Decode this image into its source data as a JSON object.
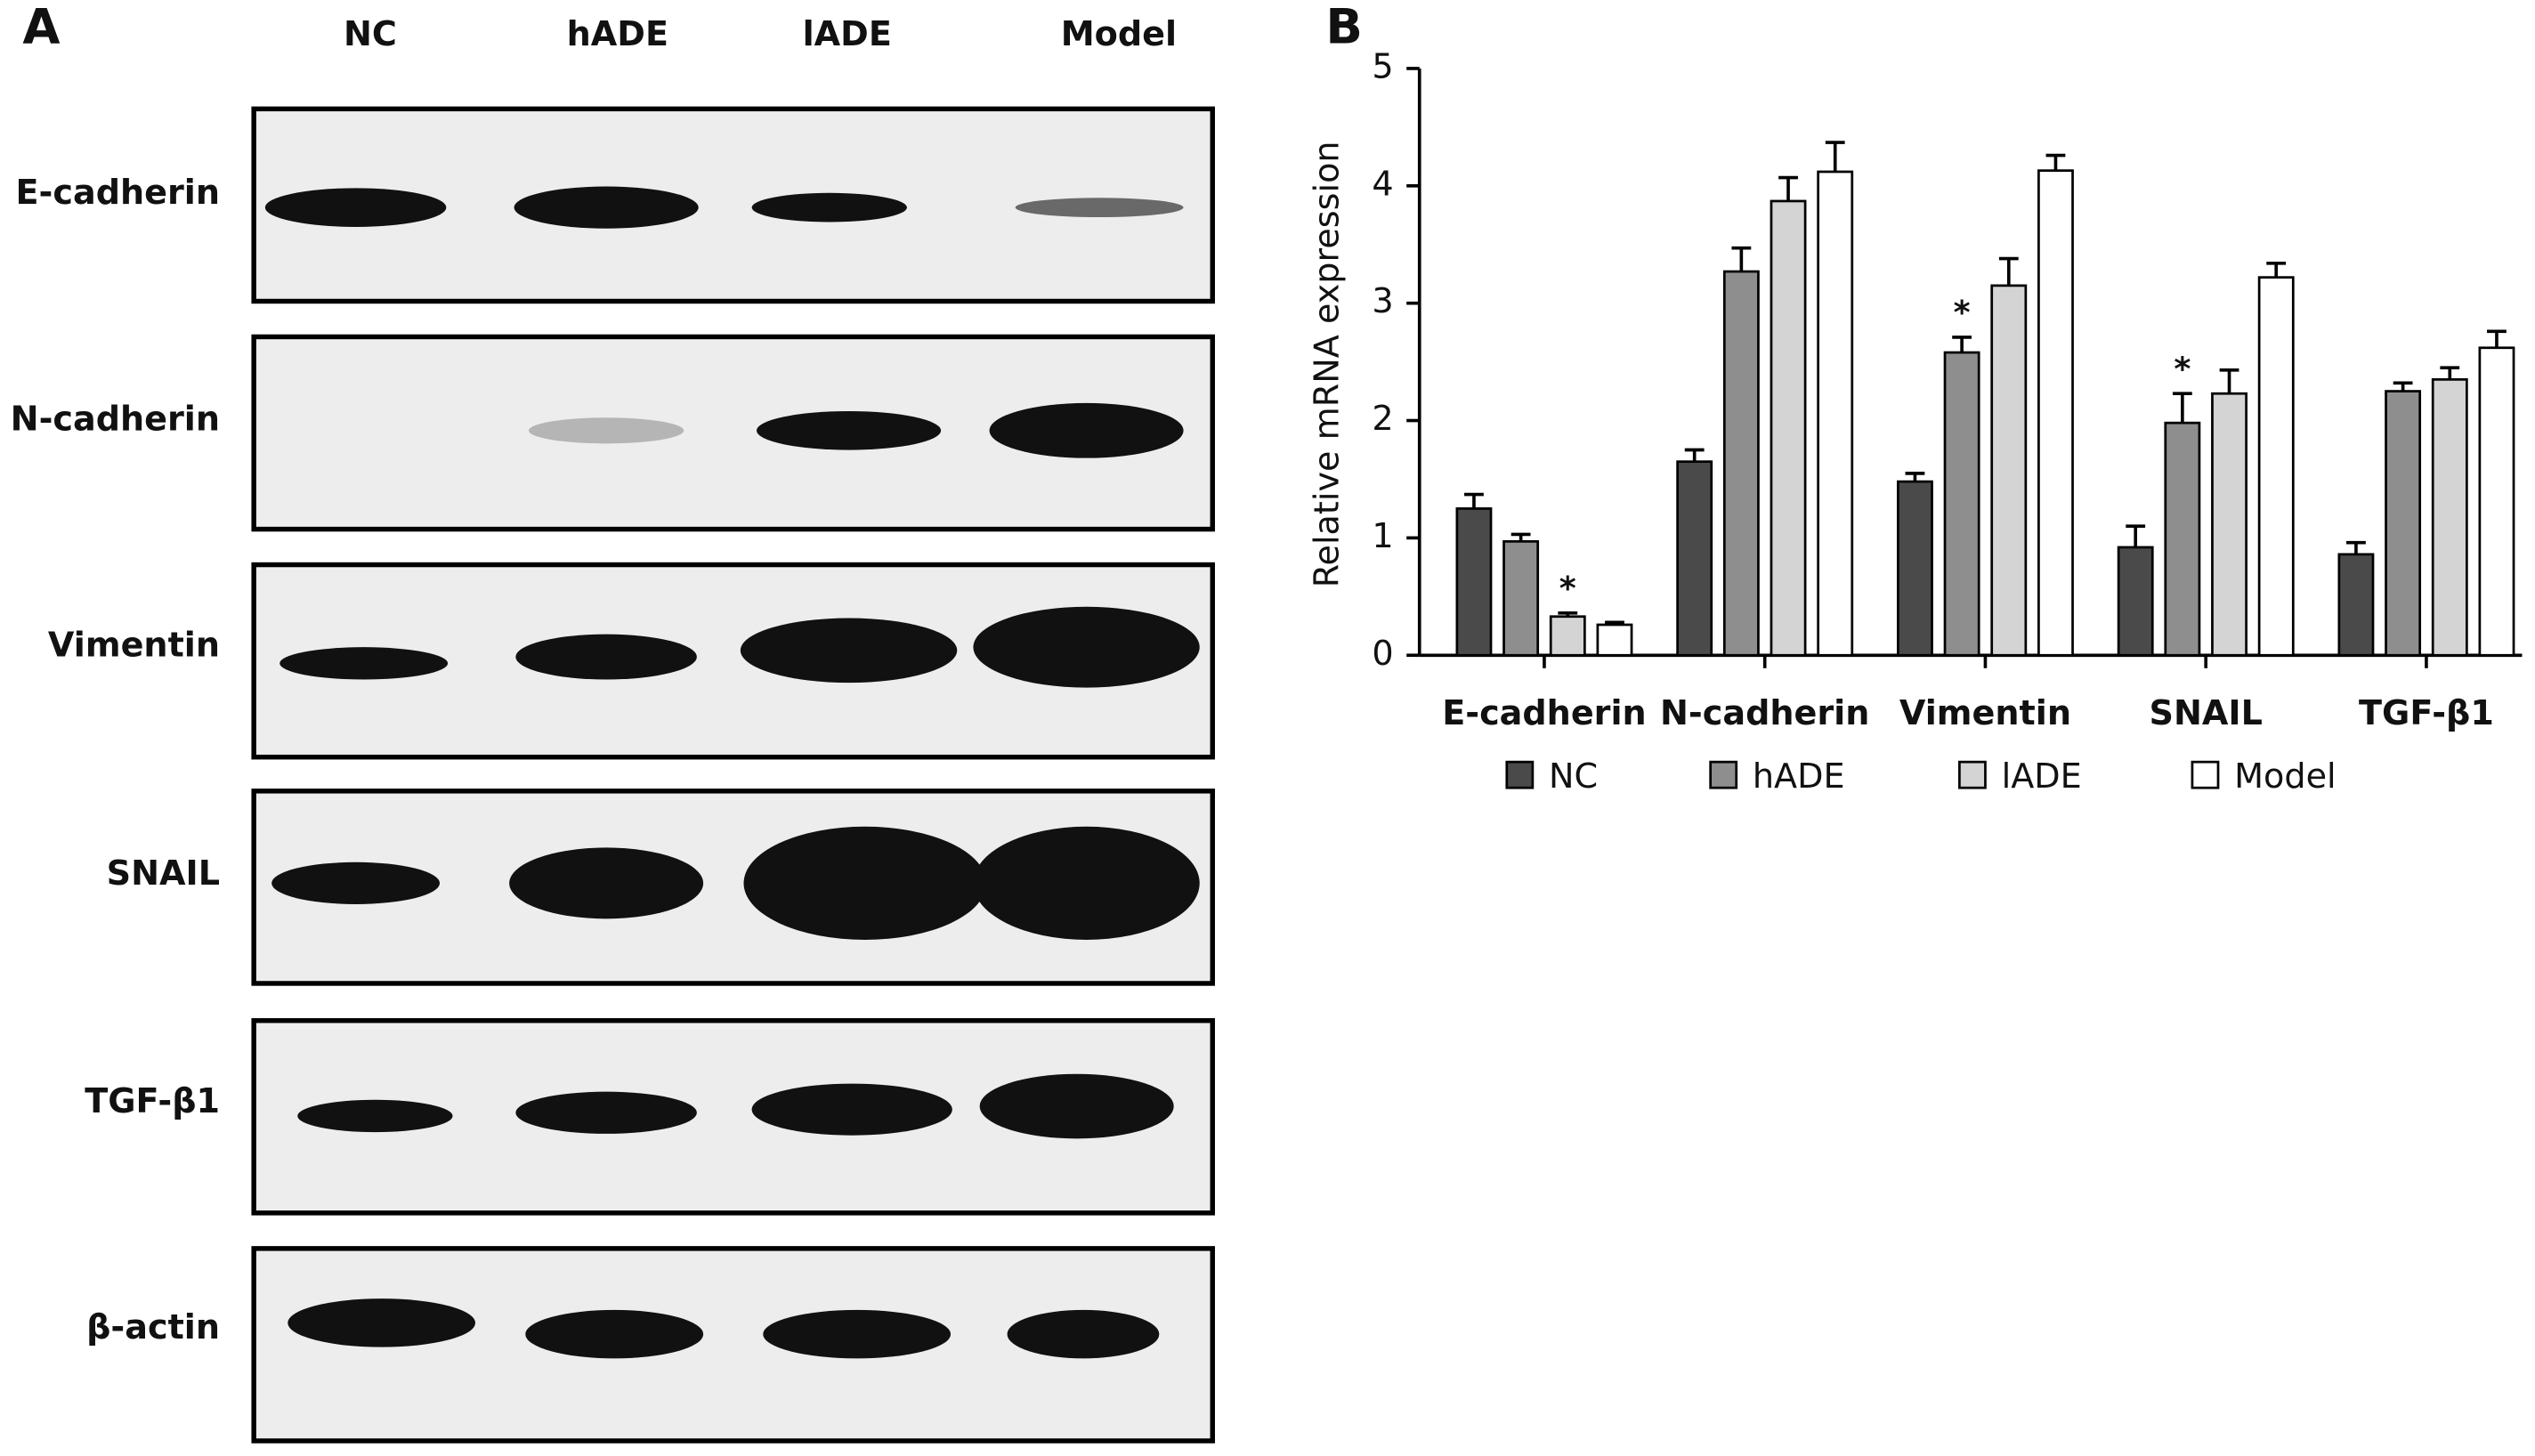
{
  "blot": {
    "panel_label": "A",
    "lanes": [
      "NC",
      "hADE",
      "lADE",
      "Model"
    ],
    "proteins": [
      "E-cadherin",
      "N-cadherin",
      "Vimentin",
      "SNAIL",
      "TGF-β1",
      "β-actin"
    ]
  },
  "chart_data": {
    "type": "bar",
    "panel_label": "B",
    "y_label": "Relative mRNA expression",
    "categories": [
      "E-cadherin",
      "N-cadherin",
      "Vimentin",
      "SNAIL",
      "TGF-β1"
    ],
    "series": [
      {
        "name": "NC",
        "color": "#4a4a4a",
        "values": [
          1.25,
          1.65,
          1.48,
          0.92,
          0.86
        ],
        "errors": [
          0.12,
          0.1,
          0.07,
          0.18,
          0.1
        ]
      },
      {
        "name": "hADE",
        "color": "#8e8e8e",
        "values": [
          0.97,
          3.27,
          2.58,
          1.98,
          2.25
        ],
        "errors": [
          0.06,
          0.2,
          0.13,
          0.25,
          0.07
        ]
      },
      {
        "name": "lADE",
        "color": "#d4d4d4",
        "values": [
          0.33,
          3.87,
          3.15,
          2.23,
          2.35
        ],
        "errors": [
          0.03,
          0.2,
          0.23,
          0.2,
          0.1
        ]
      },
      {
        "name": "Model",
        "color": "#ffffff",
        "values": [
          0.26,
          4.12,
          4.13,
          3.22,
          2.62
        ],
        "errors": [
          0.02,
          0.25,
          0.13,
          0.12,
          0.14
        ]
      }
    ],
    "annotations": [
      {
        "text": "*",
        "category": "E-cadherin",
        "series": "lADE"
      },
      {
        "text": "*",
        "category": "Vimentin",
        "series": "hADE"
      },
      {
        "text": "*",
        "category": "SNAIL",
        "series": "hADE"
      }
    ],
    "ylim": [
      0,
      5
    ],
    "yticks": [
      0,
      1,
      2,
      3,
      4,
      5
    ],
    "grid": false
  }
}
